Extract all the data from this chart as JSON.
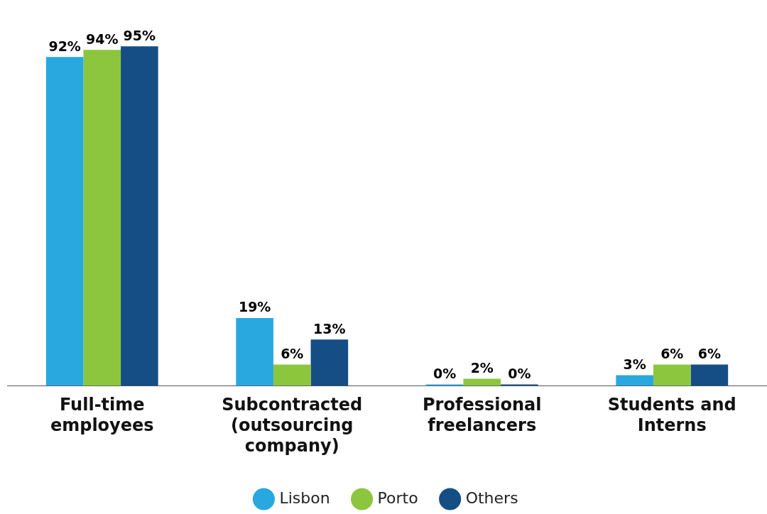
{
  "chart_data": {
    "type": "bar",
    "categories": [
      "Full-time employees",
      "Subcontracted (outsourcing company)",
      "Professional freelancers",
      "Students and Interns"
    ],
    "series": [
      {
        "name": "Lisbon",
        "color": "#29a8e0",
        "values": [
          92,
          19,
          0,
          3
        ],
        "value_labels": [
          "92%",
          "19%",
          "0%",
          "3%"
        ]
      },
      {
        "name": "Porto",
        "color": "#8cc63f",
        "values": [
          94,
          6,
          2,
          6
        ],
        "value_labels": [
          "94%",
          "6%",
          "2%",
          "6%"
        ]
      },
      {
        "name": "Others",
        "color": "#154e85",
        "values": [
          95,
          13,
          0,
          6
        ],
        "value_labels": [
          "95%",
          "13%",
          "0%",
          "6%"
        ]
      }
    ],
    "legend": "bottom",
    "grid": false
  }
}
